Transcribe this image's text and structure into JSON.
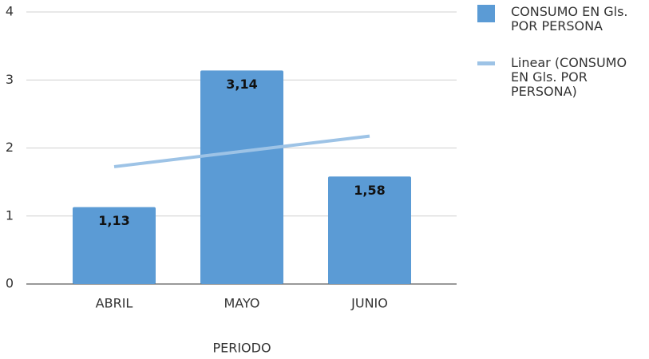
{
  "chart_data": {
    "type": "bar",
    "x_label": "PERIODO",
    "categories": [
      "ABRIL",
      "MAYO",
      "JUNIO"
    ],
    "series": [
      {
        "name": "CONSUMO EN Gls. POR PERSONA",
        "color": "#5b9bd5",
        "values": [
          1.13,
          3.14,
          1.58
        ],
        "value_labels": [
          "1,13",
          "3,14",
          "1,58"
        ]
      },
      {
        "name": "Linear (CONSUMO EN Gls. POR PERSONA)",
        "type": "line",
        "color": "#9dc3e6",
        "values": [
          1.725,
          1.95,
          2.175
        ]
      }
    ],
    "ylim": [
      0,
      4
    ],
    "yticks": [
      0,
      1,
      2,
      3,
      4
    ],
    "grid": true,
    "legend": "right"
  }
}
